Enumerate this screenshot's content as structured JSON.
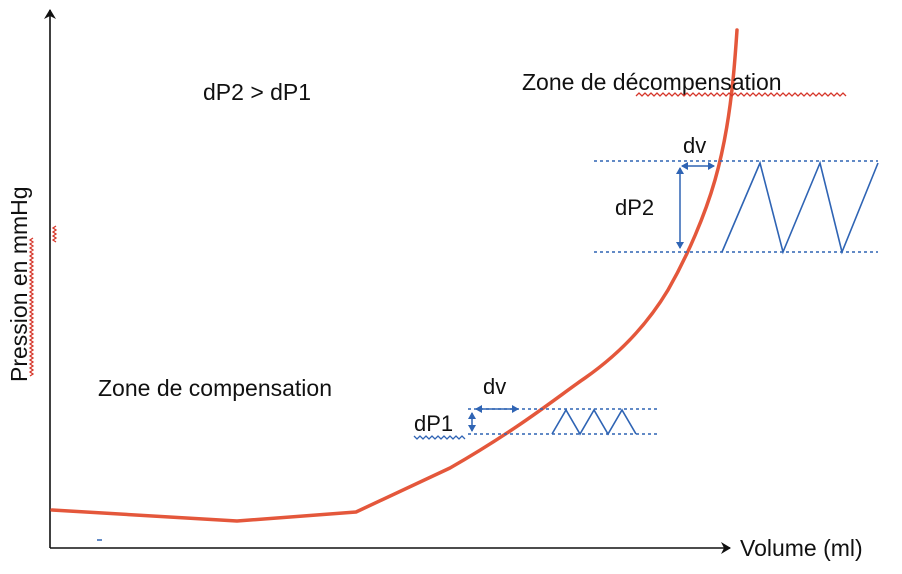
{
  "axes": {
    "x_label": "Volume (ml)",
    "y_label": "Pression en mmHg"
  },
  "labels": {
    "relation": "dP2 > dP1",
    "zone_compensation": "Zone de compensation",
    "zone_decompensation": "Zone de décompensation",
    "dv_low": "dv",
    "dp1": "dP1",
    "dv_high": "dv",
    "dp2": "dP2"
  },
  "colors": {
    "curve": "#e4573b",
    "annotations": "#2f64b4",
    "axis": "#111111",
    "spellcheck": "#d6372b"
  }
}
